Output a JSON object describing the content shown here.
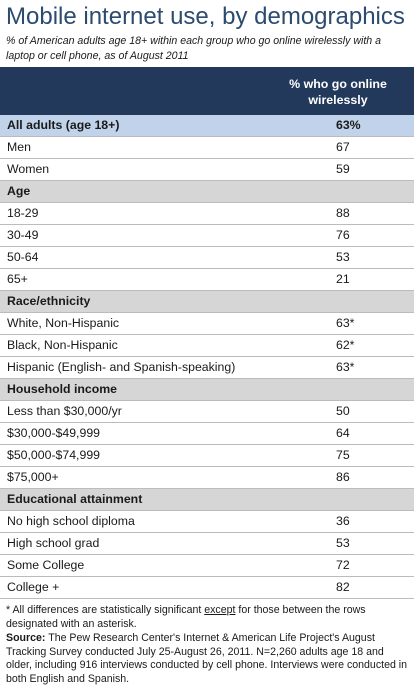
{
  "title": "Mobile internet use, by demographics",
  "subtitle": "% of American adults age 18+ within each group who go online wirelessly with a laptop or cell phone, as of August 2011",
  "table": {
    "header_line1": "% who go online",
    "header_line2": "wirelessly",
    "rows": [
      {
        "type": "highlight",
        "label": "All adults (age 18+)",
        "value": "63%"
      },
      {
        "type": "data",
        "label": "Men",
        "value": "67"
      },
      {
        "type": "data",
        "label": "Women",
        "value": "59"
      },
      {
        "type": "section",
        "label": "Age",
        "value": ""
      },
      {
        "type": "data",
        "label": "18-29",
        "value": "88"
      },
      {
        "type": "data",
        "label": "30-49",
        "value": "76"
      },
      {
        "type": "data",
        "label": "50-64",
        "value": "53"
      },
      {
        "type": "data",
        "label": "65+",
        "value": "21"
      },
      {
        "type": "section",
        "label": "Race/ethnicity",
        "value": ""
      },
      {
        "type": "data",
        "label": "White, Non-Hispanic",
        "value": "63*"
      },
      {
        "type": "data",
        "label": "Black, Non-Hispanic",
        "value": "62*"
      },
      {
        "type": "data",
        "label": "Hispanic (English- and Spanish-speaking)",
        "value": "63*"
      },
      {
        "type": "section",
        "label": "Household income",
        "value": ""
      },
      {
        "type": "data",
        "label": "Less than $30,000/yr",
        "value": "50"
      },
      {
        "type": "data",
        "label": "$30,000-$49,999",
        "value": "64"
      },
      {
        "type": "data",
        "label": "$50,000-$74,999",
        "value": "75"
      },
      {
        "type": "data",
        "label": "$75,000+",
        "value": "86"
      },
      {
        "type": "section",
        "label": "Educational attainment",
        "value": ""
      },
      {
        "type": "data",
        "label": "No high school diploma",
        "value": "36"
      },
      {
        "type": "data",
        "label": "High school grad",
        "value": "53"
      },
      {
        "type": "data",
        "label": "Some College",
        "value": "72"
      },
      {
        "type": "data",
        "label": "College +",
        "value": "82"
      }
    ]
  },
  "notes": {
    "footnote_before": "* All differences are statistically significant ",
    "footnote_underlined": "except",
    "footnote_after": " for those between the rows designated with an asterisk.",
    "source_label": "Source:",
    "source_text": "The Pew Research Center's Internet & American Life Project's August Tracking Survey conducted July 25-August 26, 2011. N=2,260 adults age 18 and older, including 916 interviews conducted by cell phone. Interviews were conducted in both English and Spanish."
  },
  "colors": {
    "title": "#2b4b6f",
    "header_bg": "#22395b",
    "highlight_row": "#c1d3ea",
    "section_row": "#d6d6d6"
  }
}
